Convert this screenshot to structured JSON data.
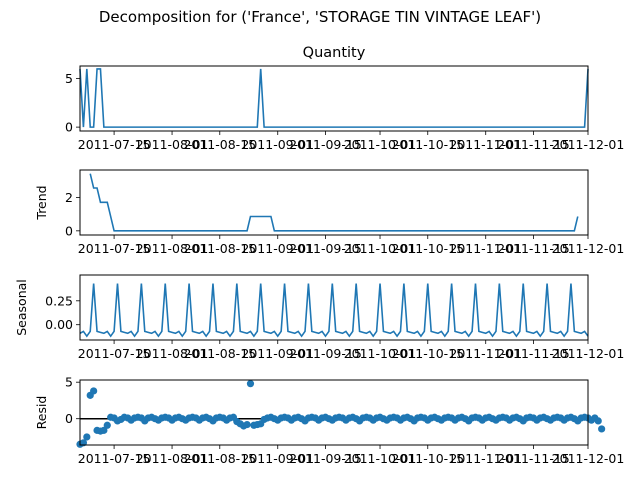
{
  "figure_title": "Decomposition for ('France', 'STORAGE TIN VINTAGE LEAF')",
  "chart_data": [
    {
      "type": "line",
      "panel": "observed",
      "title": "Quantity",
      "ylabel": "",
      "ylim": [
        -0.4,
        6.3
      ],
      "yticks": [
        0,
        5
      ],
      "x_start": "2011-07-05",
      "x_end": "2011-12-01",
      "x_step_days": 1,
      "values": [
        6,
        0,
        6,
        0,
        0,
        6,
        6,
        0,
        0,
        0,
        0,
        0,
        0,
        0,
        0,
        0,
        0,
        0,
        0,
        0,
        0,
        0,
        0,
        0,
        0,
        0,
        0,
        0,
        0,
        0,
        0,
        0,
        0,
        0,
        0,
        0,
        0,
        0,
        0,
        0,
        0,
        0,
        0,
        0,
        0,
        0,
        0,
        0,
        0,
        0,
        0,
        0,
        0,
        6,
        0,
        0,
        0,
        0,
        0,
        0,
        0,
        0,
        0,
        0,
        0,
        0,
        0,
        0,
        0,
        0,
        0,
        0,
        0,
        0,
        0,
        0,
        0,
        0,
        0,
        0,
        0,
        0,
        0,
        0,
        0,
        0,
        0,
        0,
        0,
        0,
        0,
        0,
        0,
        0,
        0,
        0,
        0,
        0,
        0,
        0,
        0,
        0,
        0,
        0,
        0,
        0,
        0,
        0,
        0,
        0,
        0,
        0,
        0,
        0,
        0,
        0,
        0,
        0,
        0,
        0,
        0,
        0,
        0,
        0,
        0,
        0,
        0,
        0,
        0,
        0,
        0,
        0,
        0,
        0,
        0,
        0,
        0,
        0,
        0,
        0,
        0,
        0,
        0,
        0,
        0,
        0,
        0,
        0,
        0,
        6
      ],
      "xticks": [
        "2011-07-15",
        "2011-08-01",
        "2011-08-15",
        "2011-09-01",
        "2011-09-15",
        "2011-10-01",
        "2011-10-15",
        "2011-11-01",
        "2011-11-15",
        "2011-12-01"
      ]
    },
    {
      "type": "line",
      "panel": "trend",
      "ylabel": "Trend",
      "ylim": [
        -0.25,
        3.65
      ],
      "yticks": [
        0,
        2
      ],
      "x_start": "2011-07-08",
      "x_end": "2011-11-28",
      "x_step_days": 1,
      "values": [
        3.43,
        2.57,
        2.57,
        1.71,
        1.71,
        1.71,
        0.86,
        0,
        0,
        0,
        0,
        0,
        0,
        0,
        0,
        0,
        0,
        0,
        0,
        0,
        0,
        0,
        0,
        0,
        0,
        0,
        0,
        0,
        0,
        0,
        0,
        0,
        0,
        0,
        0,
        0,
        0,
        0,
        0,
        0,
        0,
        0,
        0,
        0,
        0,
        0,
        0,
        0.86,
        0.86,
        0.86,
        0.86,
        0.86,
        0.86,
        0.86,
        0,
        0,
        0,
        0,
        0,
        0,
        0,
        0,
        0,
        0,
        0,
        0,
        0,
        0,
        0,
        0,
        0,
        0,
        0,
        0,
        0,
        0,
        0,
        0,
        0,
        0,
        0,
        0,
        0,
        0,
        0,
        0,
        0,
        0,
        0,
        0,
        0,
        0,
        0,
        0,
        0,
        0,
        0,
        0,
        0,
        0,
        0,
        0,
        0,
        0,
        0,
        0,
        0,
        0,
        0,
        0,
        0,
        0,
        0,
        0,
        0,
        0,
        0,
        0,
        0,
        0,
        0,
        0,
        0,
        0,
        0,
        0,
        0,
        0,
        0,
        0,
        0,
        0,
        0,
        0,
        0,
        0,
        0,
        0,
        0,
        0,
        0,
        0,
        0,
        0.86
      ],
      "xticks": [
        "2011-07-15",
        "2011-08-01",
        "2011-08-15",
        "2011-09-01",
        "2011-09-15",
        "2011-10-01",
        "2011-10-15",
        "2011-11-01",
        "2011-11-15",
        "2011-12-01"
      ]
    },
    {
      "type": "line",
      "panel": "seasonal",
      "ylabel": "Seasonal",
      "ylim": [
        -0.16,
        0.52
      ],
      "yticks": [
        0.25,
        0.0
      ],
      "ytick_labels": [
        "0.25",
        "0.00"
      ],
      "x_start": "2011-07-05",
      "x_end": "2011-12-01",
      "x_step_days": 1,
      "period_pattern": [
        -0.09,
        -0.07,
        -0.12,
        -0.07,
        0.43,
        -0.07,
        -0.08
      ],
      "xticks": [
        "2011-07-15",
        "2011-08-01",
        "2011-08-15",
        "2011-09-01",
        "2011-09-15",
        "2011-10-01",
        "2011-10-15",
        "2011-11-01",
        "2011-11-15",
        "2011-12-01"
      ]
    },
    {
      "type": "scatter",
      "panel": "resid",
      "ylabel": "Resid",
      "ylim": [
        -3.6,
        5.3
      ],
      "yticks": [
        0,
        5
      ],
      "x_start": "2011-07-05",
      "x_end": "2011-12-01",
      "x_step_days": 1,
      "values": [
        -3.5,
        -3.3,
        -2.5,
        3.2,
        3.8,
        -1.6,
        -1.7,
        -1.6,
        -0.9,
        0.2,
        0.1,
        -0.3,
        -0.1,
        0.2,
        0.1,
        -0.2,
        0.1,
        0.2,
        0.1,
        -0.3,
        0.1,
        0.2,
        0.0,
        -0.2,
        0.1,
        0.2,
        0.1,
        -0.2,
        0.1,
        0.2,
        0.0,
        -0.2,
        0.1,
        0.2,
        0.1,
        -0.2,
        0.1,
        0.2,
        0.0,
        -0.3,
        0.1,
        0.2,
        0.1,
        -0.2,
        0.1,
        0.2,
        -0.4,
        -0.7,
        -1.0,
        -0.8,
        4.8,
        -0.9,
        -0.8,
        -0.7,
        -0.1,
        0.1,
        0.2,
        0.0,
        -0.2,
        0.1,
        0.2,
        0.1,
        -0.2,
        0.1,
        0.2,
        0.0,
        -0.3,
        0.1,
        0.2,
        0.1,
        -0.2,
        0.1,
        0.2,
        0.0,
        -0.2,
        0.1,
        0.2,
        0.1,
        -0.2,
        0.1,
        0.2,
        0.0,
        -0.3,
        0.1,
        0.2,
        0.1,
        -0.2,
        0.1,
        0.2,
        0.0,
        -0.2,
        0.1,
        0.2,
        0.1,
        -0.2,
        0.1,
        0.2,
        0.0,
        -0.3,
        0.1,
        0.2,
        0.1,
        -0.2,
        0.1,
        0.2,
        0.0,
        -0.2,
        0.1,
        0.2,
        0.1,
        -0.2,
        0.1,
        0.2,
        0.0,
        -0.3,
        0.1,
        0.2,
        0.1,
        -0.2,
        0.1,
        0.2,
        0.0,
        -0.2,
        0.1,
        0.2,
        0.1,
        -0.2,
        0.1,
        0.2,
        0.0,
        -0.3,
        0.1,
        0.2,
        0.1,
        -0.2,
        0.1,
        0.2,
        0.0,
        -0.2,
        0.1,
        0.2,
        0.1,
        -0.2,
        0.1,
        0.2,
        0.0,
        -0.3,
        0.1,
        0.2,
        0.1,
        -0.2,
        0.1,
        -0.3,
        -1.4
      ],
      "xticks": [
        "2011-07-15",
        "2011-08-01",
        "2011-08-15",
        "2011-09-01",
        "2011-09-15",
        "2011-10-01",
        "2011-10-15",
        "2011-11-01",
        "2011-11-15",
        "2011-12-01"
      ]
    }
  ]
}
